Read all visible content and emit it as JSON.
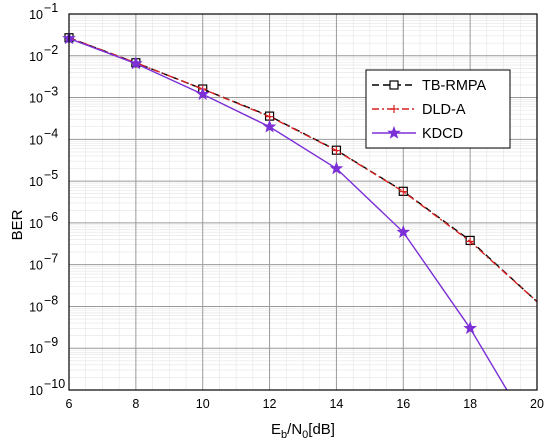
{
  "chart_data": {
    "type": "line",
    "xlabel": {
      "main": "E",
      "sub1": "b",
      "mid": "/N",
      "sub2": "0",
      "tail": "[dB]"
    },
    "ylabel": "BER",
    "xlim": [
      6,
      20
    ],
    "ylim_log10": [
      -10,
      -1
    ],
    "y_scale": "log",
    "grid": "on (major and minor)",
    "legend_position": "top-right",
    "x_ticks": [
      "6",
      "8",
      "10",
      "12",
      "14",
      "16",
      "18",
      "20"
    ],
    "y_tick_exponents": [
      "-1",
      "-2",
      "-3",
      "-4",
      "-5",
      "-6",
      "-7",
      "-8",
      "-9",
      "-10"
    ],
    "y_tick_base": "10",
    "series": [
      {
        "name": "TB-RMPA",
        "color": "#000000",
        "dash": "dash",
        "marker": "square",
        "x": [
          6,
          8,
          10,
          12,
          14,
          16,
          18,
          20
        ],
        "y": [
          0.027,
          0.0068,
          0.0016,
          0.00036,
          5.5e-05,
          5.7e-06,
          3.8e-07,
          1.3e-08
        ],
        "marker_x": [
          6,
          8,
          10,
          12,
          14,
          16,
          18
        ]
      },
      {
        "name": "DLD-A",
        "color": "#d62020",
        "dash": "dashdot",
        "marker": "plus",
        "x": [
          6,
          8,
          10,
          12,
          14,
          16,
          18,
          20
        ],
        "y": [
          0.027,
          0.0068,
          0.0016,
          0.00035,
          5.4e-05,
          5.6e-06,
          3.6e-07,
          1.3e-08
        ],
        "marker_x": [
          6,
          8,
          10,
          12,
          14,
          16,
          18
        ]
      },
      {
        "name": "KDCD",
        "color": "#7b2fd6",
        "dash": "solid",
        "marker": "star",
        "x": [
          6,
          8,
          10,
          12,
          14,
          16,
          18,
          19.1
        ],
        "y": [
          0.026,
          0.0065,
          0.0012,
          0.0002,
          2e-05,
          6e-07,
          3e-09,
          1e-10
        ],
        "marker_x": [
          6,
          8,
          10,
          12,
          14,
          16,
          18
        ]
      }
    ]
  }
}
